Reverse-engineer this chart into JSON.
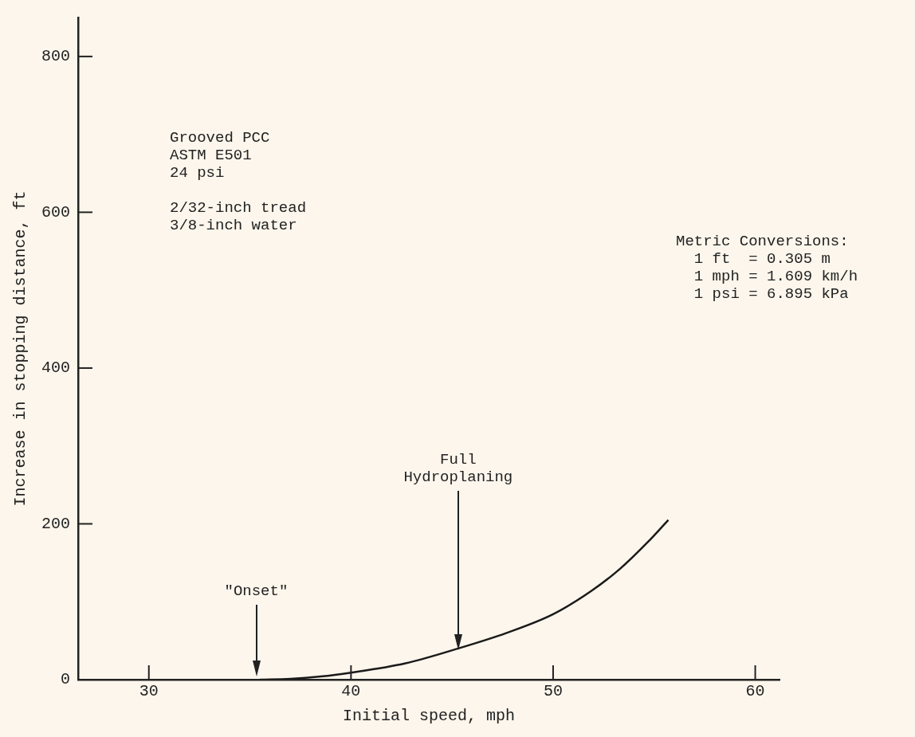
{
  "chart_data": {
    "type": "line",
    "xlabel": "Initial speed, mph",
    "ylabel": "Increase in stopping distance, ft",
    "x": [
      35.5,
      37,
      38.5,
      40,
      42.7,
      45.3,
      47.7,
      50,
      51.9,
      53.3,
      54.7,
      55.7
    ],
    "series": [
      {
        "color": "#1a1a1a",
        "values": [
          0,
          1,
          4,
          9,
          21,
          40,
          60,
          84,
          114,
          142,
          177,
          205
        ]
      }
    ],
    "xlim": [
      26.5,
      61.2
    ],
    "xticks": [
      30,
      40,
      50,
      60
    ],
    "ylim": [
      0,
      850
    ],
    "yticks": [
      0,
      200,
      400,
      600,
      800
    ],
    "grid": false,
    "legend": false,
    "marker": "none",
    "line_style": "solid",
    "annotations": [
      "\"Onset\"",
      "Full\nHydroplaning",
      "Grooved PCC\nASTM E501\n24 psi\n\n2/32-inch tread\n3/8-inch water",
      "Metric Conversions:\n  1 ft  = 0.305 m\n  1 mph = 1.609 km/h\n  1 psi = 6.895 kPa"
    ]
  }
}
